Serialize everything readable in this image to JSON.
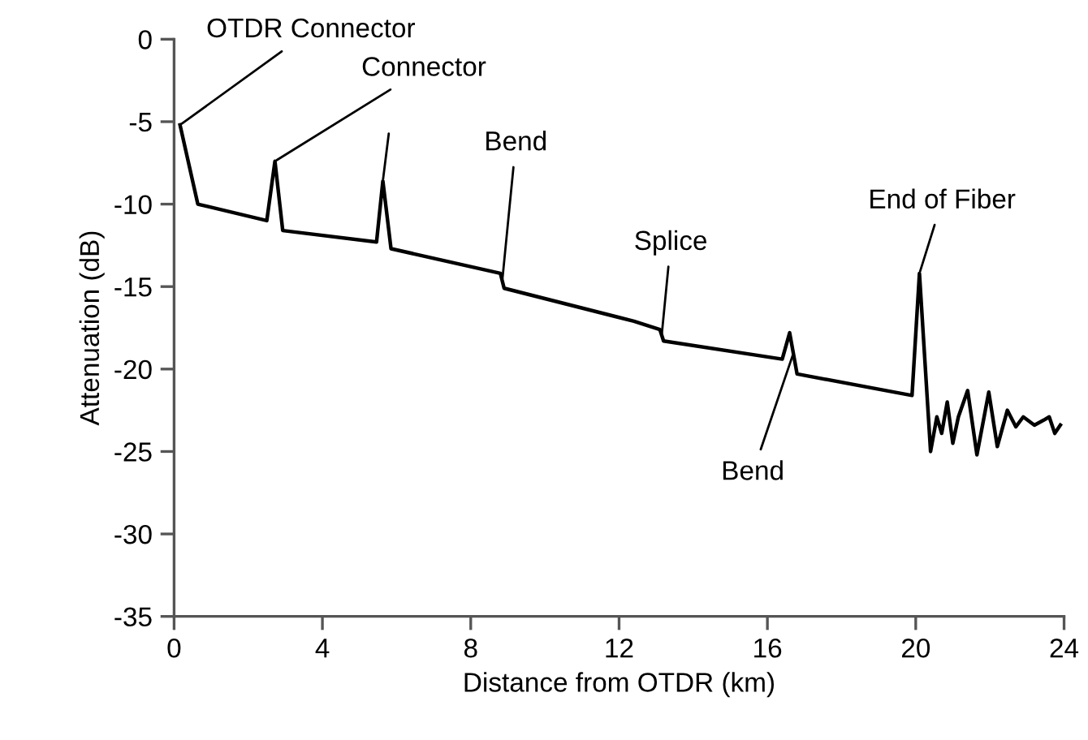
{
  "chart_data": {
    "type": "line",
    "xlabel": "Distance from OTDR (km)",
    "ylabel": "Attenuation (dB)",
    "x": [
      0.16,
      0.64,
      2.5,
      2.72,
      2.93,
      5.46,
      5.63,
      5.85,
      8.8,
      8.9,
      12.4,
      13.1,
      13.2,
      16.4,
      16.6,
      16.8,
      19.9,
      20.1,
      20.4,
      20.57,
      20.7,
      20.85,
      21.0,
      21.15,
      21.4,
      21.65,
      21.97,
      22.2,
      22.47,
      22.7,
      22.9,
      23.2,
      23.45,
      23.6,
      23.75,
      23.9
    ],
    "series": [
      {
        "color": "#000000",
        "values": [
          -5.2,
          -10.0,
          -11.0,
          -7.4,
          -11.6,
          -12.3,
          -8.6,
          -12.7,
          -14.2,
          -15.1,
          -17.1,
          -17.6,
          -18.3,
          -19.4,
          -17.8,
          -20.3,
          -21.6,
          -14.2,
          -25.0,
          -22.9,
          -23.9,
          -22.0,
          -24.5,
          -22.9,
          -21.3,
          -25.2,
          -21.4,
          -24.7,
          -22.5,
          -23.5,
          -22.9,
          -23.4,
          -23.1,
          -22.9,
          -23.9,
          -23.4
        ]
      }
    ],
    "xlim": [
      0,
      24
    ],
    "xticks": [
      0,
      4,
      8,
      12,
      16,
      20,
      24
    ],
    "ylim": [
      -35,
      0
    ],
    "yticks": [
      -35,
      -30,
      -25,
      -20,
      -15,
      -10,
      -5,
      0
    ],
    "grid": false,
    "legend": false,
    "marker": "none",
    "line_style": "solid",
    "annotations": [
      {
        "text": "OTDR Connector",
        "x": 0.16,
        "y": -5.2
      },
      {
        "text": "Connector",
        "x": 2.72,
        "y": -7.4
      },
      {
        "text": "Bend",
        "x": 8.85,
        "y": -14.65
      },
      {
        "text": "Splice",
        "x": 13.15,
        "y": -17.95
      },
      {
        "text": "Bend",
        "x": 16.7,
        "y": -19.05
      },
      {
        "text": "End of Fiber",
        "x": 20.1,
        "y": -14.2
      }
    ]
  }
}
